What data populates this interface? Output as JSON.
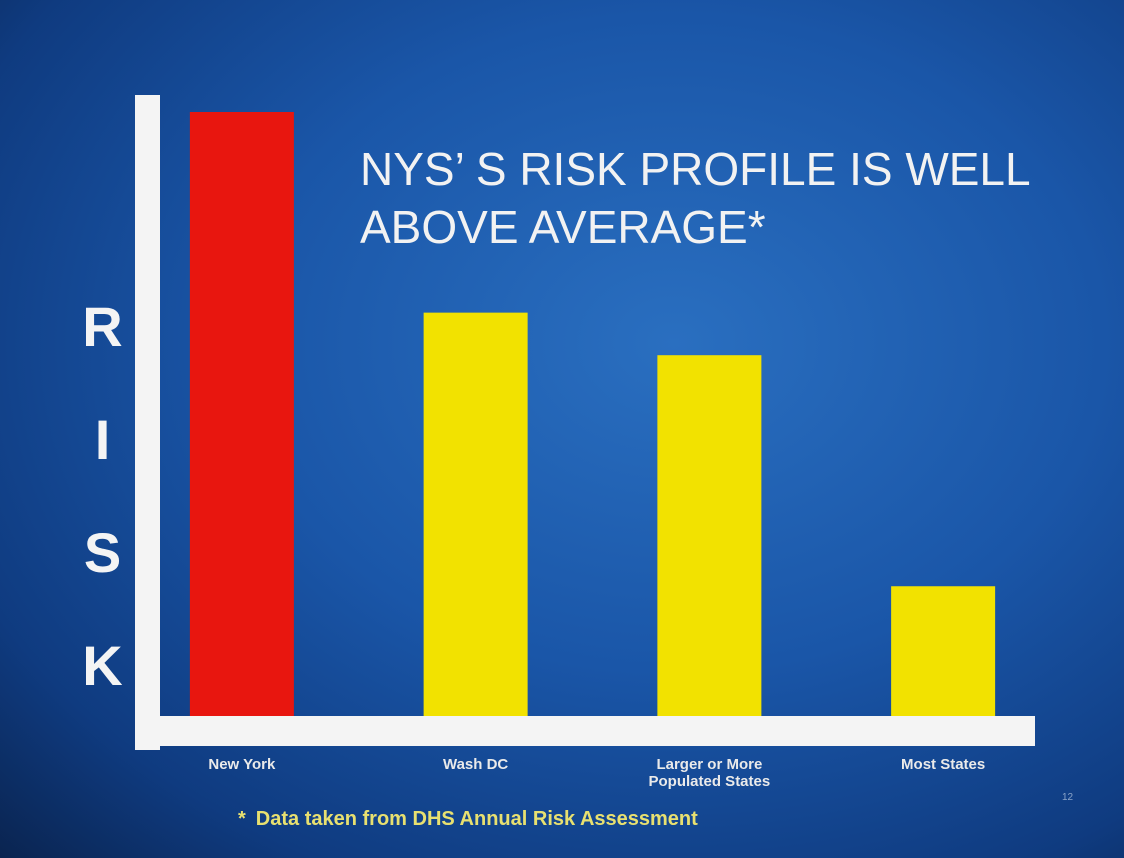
{
  "chart_data": {
    "type": "bar",
    "title": "NYS’ S RISK PROFILE IS WELL ABOVE AVERAGE*",
    "ylabel": "RISK",
    "categories": [
      "New York",
      "Wash DC",
      "Larger or More Populated States",
      "Most States"
    ],
    "values": [
      100,
      67,
      60,
      22
    ],
    "colors": [
      "#e8160f",
      "#f2e200",
      "#f2e200",
      "#f2e200"
    ],
    "ylim": [
      0,
      100
    ],
    "footnote_mark": "*",
    "footnote": "Data taken from DHS Annual Risk Assessment",
    "page_number": "12"
  }
}
